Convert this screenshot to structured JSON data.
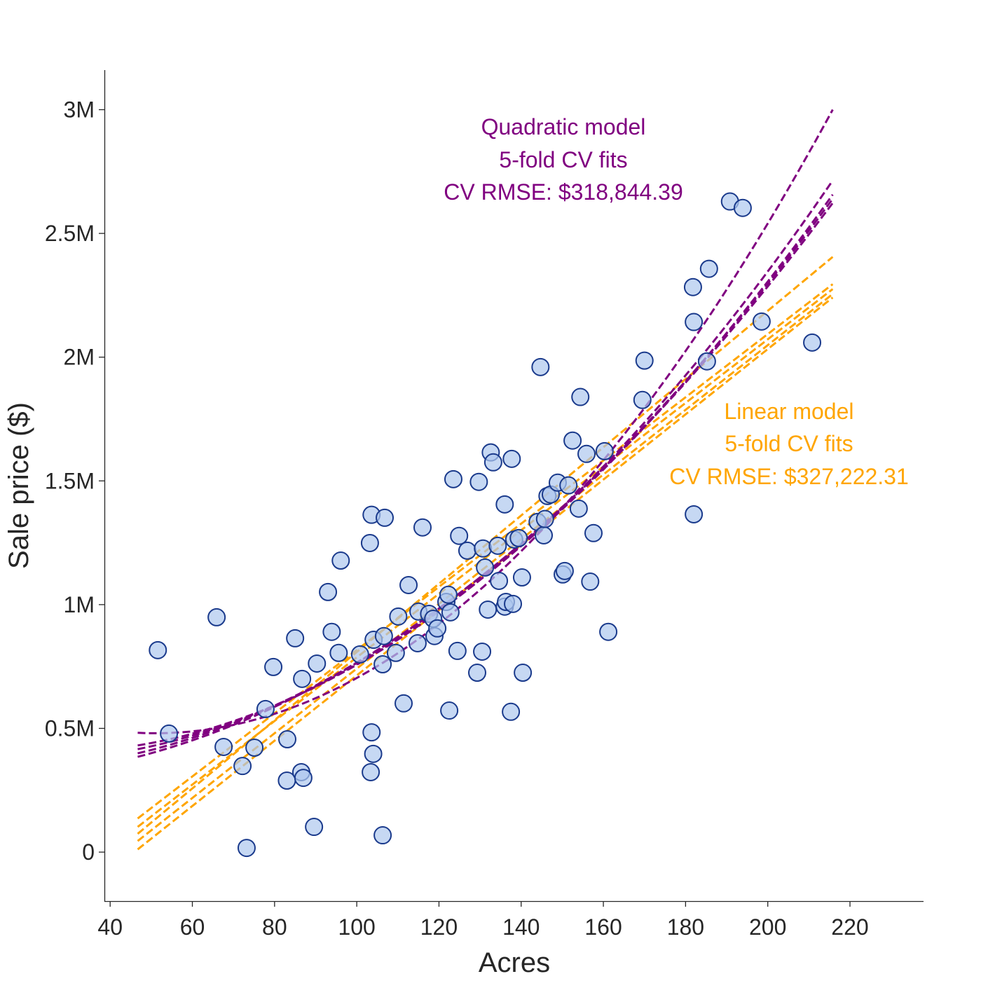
{
  "chart_data": {
    "type": "scatter",
    "xlabel": "Acres",
    "ylabel": "Sale price ($)",
    "xlim": [
      38.6,
      237.9
    ],
    "ylim": [
      -198000,
      3160000
    ],
    "grid": false,
    "x_ticks": [
      40,
      60,
      80,
      100,
      120,
      140,
      160,
      180,
      200,
      220
    ],
    "x_tick_labels": [
      "40",
      "60",
      "80",
      "100",
      "120",
      "140",
      "160",
      "180",
      "200",
      "220"
    ],
    "y_ticks": [
      0,
      500000,
      1000000,
      1500000,
      2000000,
      2500000,
      3000000
    ],
    "y_tick_labels": [
      "0",
      "0.5M",
      "1M",
      "1.5M",
      "2M",
      "2.5M",
      "3M"
    ],
    "colors": {
      "points_fill": "#aec7ee",
      "points_edge": "#1a3a8c",
      "quadratic": "#800080",
      "linear": "#FFA500"
    },
    "points": {
      "x": [
        51.6,
        54.3,
        65.9,
        67.6,
        72.2,
        73.2,
        75.1,
        77.8,
        79.7,
        83.0,
        83.1,
        85.0,
        86.5,
        86.7,
        87.0,
        89.6,
        90.3,
        93.0,
        93.9,
        95.6,
        96.1,
        100.8,
        103.2,
        103.6,
        103.6,
        103.4,
        104.0,
        104.1,
        106.6,
        106.3,
        106.3,
        106.8,
        109.5,
        110.1,
        111.4,
        112.6,
        114.8,
        115.0,
        116.0,
        117.6,
        118.6,
        118.9,
        119.6,
        121.8,
        122.3,
        122.5,
        122.8,
        123.5,
        124.5,
        124.9,
        126.9,
        129.3,
        129.7,
        130.5,
        130.7,
        131.2,
        131.9,
        132.6,
        133.2,
        134.6,
        134.3,
        136.0,
        136.0,
        136.3,
        137.7,
        138.0,
        137.5,
        138.3,
        139.4,
        140.2,
        140.4,
        144.0,
        144.7,
        145.5,
        145.8,
        146.4,
        147.2,
        148.9,
        150.1,
        150.6,
        151.5,
        152.5,
        154.0,
        154.4,
        155.9,
        156.8,
        157.6,
        160.3,
        161.2,
        169.5,
        170.0,
        181.8,
        182.0,
        182.0,
        185.2,
        185.7,
        190.8,
        193.9,
        198.5,
        210.8
      ],
      "y": [
        816000,
        479000,
        949000,
        425000,
        348000,
        17000,
        422000,
        578000,
        748000,
        289000,
        456000,
        864000,
        323000,
        700000,
        300000,
        102000,
        762000,
        1051000,
        890000,
        805000,
        1178000,
        799000,
        1249000,
        1363000,
        484000,
        323000,
        397000,
        858000,
        873000,
        68000,
        759000,
        1351000,
        805000,
        952000,
        601000,
        1079000,
        844000,
        972000,
        1312000,
        963000,
        943000,
        873000,
        904000,
        1011000,
        1040000,
        572000,
        969000,
        1507000,
        813000,
        1278000,
        1218000,
        725000,
        1496000,
        810000,
        1227000,
        1150000,
        980000,
        1615000,
        1575000,
        1096000,
        1238000,
        1405000,
        992000,
        1011000,
        1589000,
        1003000,
        567000,
        1263000,
        1269000,
        1110000,
        725000,
        1334000,
        1960000,
        1280000,
        1346000,
        1439000,
        1445000,
        1493000,
        1122000,
        1136000,
        1482000,
        1663000,
        1388000,
        1839000,
        1609000,
        1093000,
        1289000,
        1620000,
        890000,
        1827000,
        1986000,
        2283000,
        2142000,
        1365000,
        1983000,
        2357000,
        2629000,
        2603000,
        2144000,
        2059000
      ]
    },
    "quadratic_fits": {
      "x": [
        46.7,
        130,
        215.8
      ],
      "series": [
        {
          "y": [
            482000,
            1060000,
            3000000
          ]
        },
        {
          "y": [
            431000,
            1100000,
            2714000
          ]
        },
        {
          "y": [
            416000,
            1100000,
            2657000
          ]
        },
        {
          "y": [
            399000,
            1110000,
            2640000
          ]
        },
        {
          "y": [
            385000,
            1110000,
            2623000
          ]
        }
      ]
    },
    "linear_fits": {
      "x": [
        46.7,
        215.8
      ],
      "series": [
        {
          "y": [
            136000,
            2295000
          ]
        },
        {
          "y": [
            102000,
            2275000
          ]
        },
        {
          "y": [
            74000,
            2405000
          ]
        },
        {
          "y": [
            45000,
            2255000
          ]
        },
        {
          "y": [
            11000,
            2241000
          ]
        }
      ]
    },
    "annotations": {
      "quadratic": [
        "Quadratic model",
        "5-fold CV fits",
        "CV RMSE: $318,844.39"
      ],
      "linear": [
        "Linear model",
        "5-fold CV fits",
        "CV RMSE: $327,222.31"
      ]
    }
  }
}
